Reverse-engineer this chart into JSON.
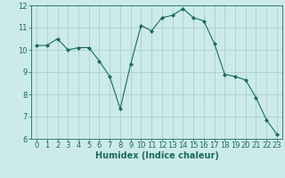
{
  "x": [
    0,
    1,
    2,
    3,
    4,
    5,
    6,
    7,
    8,
    9,
    10,
    11,
    12,
    13,
    14,
    15,
    16,
    17,
    18,
    19,
    20,
    21,
    22,
    23
  ],
  "y": [
    10.2,
    10.2,
    10.5,
    10.0,
    10.1,
    10.1,
    9.5,
    8.8,
    7.35,
    9.35,
    11.1,
    10.85,
    11.45,
    11.55,
    11.85,
    11.45,
    11.3,
    10.3,
    8.9,
    8.8,
    8.65,
    7.85,
    6.85,
    6.2
  ],
  "line_color": "#1a6b5a",
  "marker": "D",
  "marker_size": 2.0,
  "bg_color": "#cceaea",
  "grid_color": "#aacece",
  "xlabel": "Humidex (Indice chaleur)",
  "xlim": [
    -0.5,
    23.5
  ],
  "ylim": [
    6,
    12
  ],
  "yticks": [
    6,
    7,
    8,
    9,
    10,
    11,
    12
  ],
  "xticks": [
    0,
    1,
    2,
    3,
    4,
    5,
    6,
    7,
    8,
    9,
    10,
    11,
    12,
    13,
    14,
    15,
    16,
    17,
    18,
    19,
    20,
    21,
    22,
    23
  ],
  "tick_color": "#1a6b5a",
  "label_color": "#1a6b5a",
  "tick_fontsize": 6,
  "xlabel_fontsize": 7
}
